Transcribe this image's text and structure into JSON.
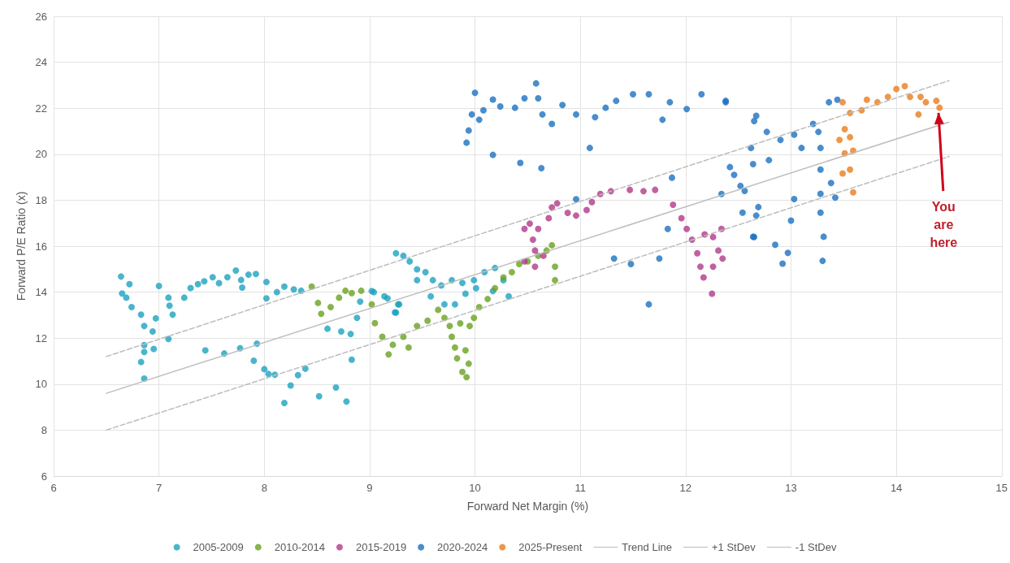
{
  "chart_data": {
    "type": "scatter",
    "xlabel": "Forward Net Margin (%)",
    "ylabel": "Forward P/E Ratio (x)",
    "xlim": [
      6,
      15
    ],
    "xticks": [
      6,
      7,
      8,
      9,
      10,
      11,
      12,
      13,
      14,
      15
    ],
    "ylim": [
      6,
      26
    ],
    "yticks": [
      6,
      8,
      10,
      12,
      14,
      16,
      18,
      20,
      22,
      24,
      26
    ],
    "grid": true,
    "legend": "bottom",
    "marker": "circle",
    "annotations": [
      {
        "text": "You are here",
        "x": 14.4,
        "y": 21.8
      }
    ],
    "series": [
      {
        "name": "2005-2009",
        "color": "#1ba3bf",
        "x": [
          6.64,
          6.65,
          6.72,
          6.69,
          6.74,
          6.83,
          6.86,
          6.94,
          6.86,
          6.86,
          6.83,
          6.86,
          6.95,
          6.97,
          7.0,
          7.09,
          7.1,
          7.13,
          7.09,
          7.24,
          7.3,
          7.37,
          7.43,
          7.51,
          7.57,
          7.65,
          7.73,
          7.78,
          7.79,
          7.85,
          7.92,
          8.02,
          8.02,
          8.12,
          8.19,
          8.28,
          8.35,
          7.44,
          7.62,
          7.77,
          7.93,
          7.9,
          8.0,
          8.04,
          8.1,
          8.19,
          8.25,
          8.32,
          8.39,
          8.52,
          8.68,
          8.78,
          8.83,
          8.6,
          8.73,
          8.82,
          8.88,
          8.91,
          9.04,
          9.17,
          9.24,
          9.28,
          9.25,
          9.32,
          9.38,
          9.45,
          9.53,
          9.6,
          9.68,
          9.78,
          9.88,
          9.99,
          10.09,
          10.19,
          10.27,
          10.32,
          9.91,
          9.81,
          9.71,
          9.58,
          9.27,
          9.14,
          9.02,
          9.25,
          9.45,
          10.01,
          10.17
        ],
        "values": [
          14.68,
          13.94,
          14.35,
          13.76,
          13.35,
          13.02,
          12.53,
          12.29,
          11.7,
          11.4,
          10.96,
          10.24,
          11.53,
          12.86,
          14.27,
          13.76,
          13.41,
          13.02,
          11.96,
          13.76,
          14.18,
          14.35,
          14.47,
          14.65,
          14.39,
          14.65,
          14.94,
          14.53,
          14.2,
          14.76,
          14.79,
          14.44,
          13.73,
          14.0,
          14.24,
          14.12,
          14.06,
          11.47,
          11.33,
          11.56,
          11.76,
          11.02,
          10.65,
          10.44,
          10.41,
          9.18,
          9.94,
          10.39,
          10.67,
          9.47,
          9.85,
          9.24,
          11.06,
          12.41,
          12.29,
          12.18,
          12.88,
          13.59,
          14.0,
          13.73,
          13.12,
          13.47,
          15.69,
          15.58,
          15.34,
          14.99,
          14.87,
          14.52,
          14.29,
          14.52,
          14.4,
          14.52,
          14.87,
          15.05,
          14.52,
          13.82,
          13.93,
          13.47,
          13.47,
          13.82,
          13.47,
          13.82,
          14.05,
          13.11,
          14.52,
          14.17,
          14.05
        ]
      },
      {
        "name": "2010-2014",
        "color": "#6aa121",
        "x": [
          8.45,
          8.51,
          8.54,
          8.63,
          8.71,
          8.77,
          8.83,
          8.92,
          9.02,
          9.05,
          9.12,
          9.18,
          9.22,
          9.32,
          9.37,
          9.45,
          9.55,
          9.65,
          9.71,
          9.76,
          9.78,
          9.81,
          9.83,
          9.88,
          9.92,
          9.94,
          9.91,
          9.86,
          9.95,
          9.99,
          10.04,
          10.12,
          10.19,
          10.27,
          10.35,
          10.42,
          10.5,
          10.6,
          10.68,
          10.73,
          10.76,
          10.76
        ],
        "values": [
          14.24,
          13.53,
          13.06,
          13.35,
          13.76,
          14.06,
          13.96,
          14.06,
          13.47,
          12.65,
          12.06,
          11.29,
          11.71,
          12.06,
          11.59,
          12.53,
          12.76,
          13.23,
          12.88,
          12.53,
          12.06,
          11.59,
          11.12,
          10.53,
          10.3,
          10.89,
          11.47,
          12.64,
          12.53,
          12.88,
          13.35,
          13.7,
          14.17,
          14.64,
          14.87,
          15.22,
          15.34,
          15.58,
          15.81,
          16.04,
          15.11,
          14.52
        ]
      },
      {
        "name": "2015-2019",
        "color": "#b03a8a",
        "x": [
          10.47,
          10.52,
          10.6,
          10.55,
          10.57,
          10.65,
          10.47,
          10.57,
          10.7,
          10.73,
          10.78,
          10.88,
          10.96,
          11.06,
          11.11,
          11.19,
          11.29,
          11.47,
          11.6,
          11.71,
          11.88,
          11.96,
          12.01,
          12.06,
          12.11,
          12.14,
          12.17,
          12.25,
          12.18,
          12.26,
          12.34,
          12.31,
          12.35,
          12.26
        ],
        "values": [
          16.75,
          16.98,
          16.75,
          16.28,
          15.81,
          15.58,
          15.34,
          15.11,
          17.22,
          17.69,
          17.86,
          17.45,
          17.33,
          17.57,
          17.92,
          18.27,
          18.39,
          18.45,
          18.39,
          18.45,
          17.8,
          17.22,
          16.75,
          16.28,
          15.69,
          15.11,
          14.64,
          13.93,
          16.51,
          16.4,
          16.75,
          15.81,
          15.46,
          15.11
        ]
      },
      {
        "name": "2020-2024",
        "color": "#1c70c0",
        "x": [
          9.92,
          9.94,
          10.0,
          9.97,
          10.04,
          10.08,
          10.17,
          10.24,
          10.38,
          10.47,
          10.6,
          10.58,
          10.64,
          10.73,
          10.83,
          10.96,
          11.14,
          11.24,
          11.34,
          11.5,
          11.65,
          11.78,
          11.85,
          12.01,
          12.15,
          12.38,
          10.17,
          10.43,
          10.63,
          11.09,
          10.96,
          11.32,
          11.48,
          11.75,
          11.65,
          11.87,
          11.83,
          12.34,
          12.42,
          12.52,
          12.62,
          12.65,
          12.67,
          12.65,
          12.46,
          12.56,
          12.64,
          12.67,
          12.69,
          12.77,
          12.79,
          12.9,
          13.03,
          13.1,
          13.21,
          13.26,
          13.36,
          13.44,
          13.28,
          13.28,
          13.28,
          13.28,
          13.31,
          13.3,
          13.03,
          13.0,
          12.97,
          12.92,
          12.85,
          12.64,
          12.54,
          13.38,
          13.42,
          12.38
        ],
        "values": [
          20.5,
          21.03,
          22.67,
          21.73,
          21.5,
          21.91,
          22.38,
          22.08,
          22.02,
          22.43,
          22.43,
          23.08,
          21.73,
          21.32,
          22.14,
          21.73,
          21.61,
          22.02,
          22.32,
          22.61,
          22.61,
          21.5,
          22.26,
          21.96,
          22.61,
          22.32,
          19.97,
          19.62,
          19.39,
          20.27,
          18.04,
          15.46,
          15.22,
          15.46,
          13.47,
          18.98,
          16.75,
          18.27,
          19.44,
          18.62,
          20.27,
          21.44,
          17.33,
          16.4,
          19.1,
          18.4,
          19.57,
          21.67,
          17.7,
          20.97,
          19.74,
          20.62,
          20.85,
          20.27,
          21.32,
          20.97,
          22.26,
          22.37,
          20.27,
          19.33,
          18.28,
          17.46,
          16.41,
          15.36,
          18.05,
          17.11,
          15.71,
          15.24,
          16.06,
          16.41,
          17.46,
          18.75,
          18.11,
          22.26
        ]
      },
      {
        "name": "2025-Present",
        "color": "#e87d1e",
        "x": [
          13.49,
          13.56,
          13.51,
          13.46,
          13.56,
          13.51,
          13.59,
          13.49,
          13.56,
          13.59,
          13.67,
          13.72,
          13.82,
          13.92,
          14.0,
          14.08,
          14.13,
          14.21,
          14.23,
          14.28,
          14.38,
          14.41
        ],
        "values": [
          22.26,
          21.79,
          21.09,
          20.62,
          20.74,
          20.04,
          20.15,
          19.16,
          19.33,
          18.34,
          21.91,
          22.37,
          22.26,
          22.49,
          22.84,
          22.96,
          22.49,
          21.73,
          22.49,
          22.26,
          22.32,
          22.02
        ]
      },
      {
        "name": "Trend Line",
        "type": "line",
        "color": "#bdbdbd",
        "line_style": "solid",
        "marker": "none",
        "x": [
          6.5,
          14.5
        ],
        "values": [
          9.6,
          21.4
        ]
      },
      {
        "name": "+1 StDev",
        "type": "line",
        "color": "#bdbdbd",
        "line_style": "dashed",
        "marker": "none",
        "x": [
          6.5,
          14.5
        ],
        "values": [
          11.2,
          23.2
        ]
      },
      {
        "name": "-1 StDev",
        "type": "line",
        "color": "#bdbdbd",
        "line_style": "dashed",
        "marker": "none",
        "x": [
          6.5,
          14.5
        ],
        "values": [
          8.0,
          19.9
        ]
      }
    ]
  }
}
